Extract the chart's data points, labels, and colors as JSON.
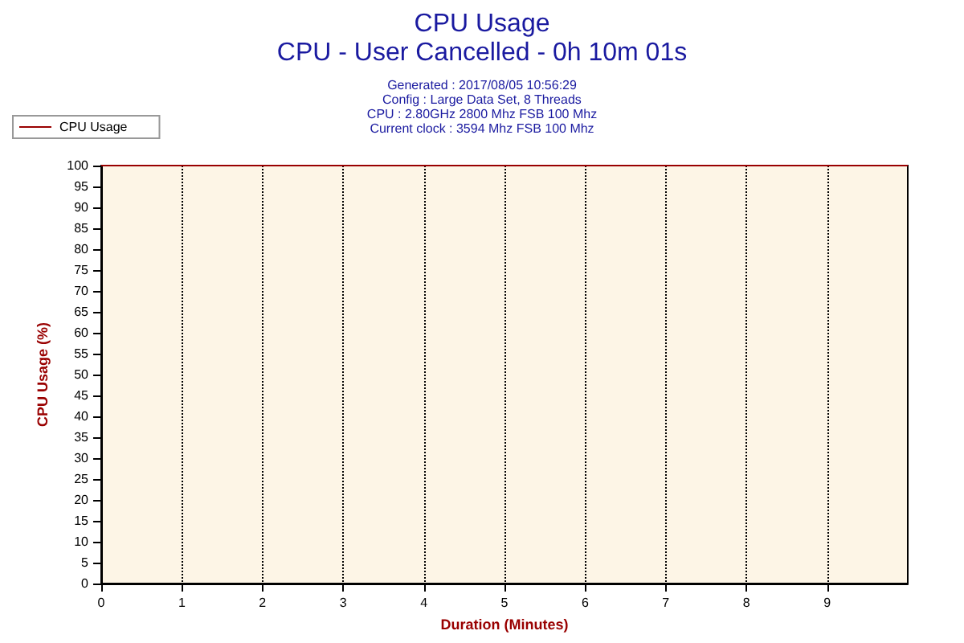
{
  "chart_data": {
    "type": "line",
    "title": "CPU Usage",
    "subtitle": "CPU - User Cancelled - 0h 10m 01s",
    "annotations": [
      "Generated : 2017/08/05 10:56:29",
      "Config : Large Data Set, 8 Threads",
      "CPU : 2.80GHz 2800 Mhz FSB 100 Mhz",
      "Current clock : 3594 Mhz FSB 100 Mhz"
    ],
    "xlabel": "Duration (Minutes)",
    "ylabel": "CPU Usage (%)",
    "series": [
      {
        "name": "CPU Usage",
        "color": "#990000",
        "x": [
          0,
          10
        ],
        "values": [
          100,
          100
        ]
      }
    ],
    "xlim": [
      0,
      10
    ],
    "xticks": [
      0,
      1,
      2,
      3,
      4,
      5,
      6,
      7,
      8,
      9
    ],
    "ylim": [
      0,
      100
    ],
    "yticks": [
      0,
      5,
      10,
      15,
      20,
      25,
      30,
      35,
      40,
      45,
      50,
      55,
      60,
      65,
      70,
      75,
      80,
      85,
      90,
      95,
      100
    ],
    "grid": "x",
    "legend": "top left",
    "marker": "none",
    "line_style": "solid"
  }
}
